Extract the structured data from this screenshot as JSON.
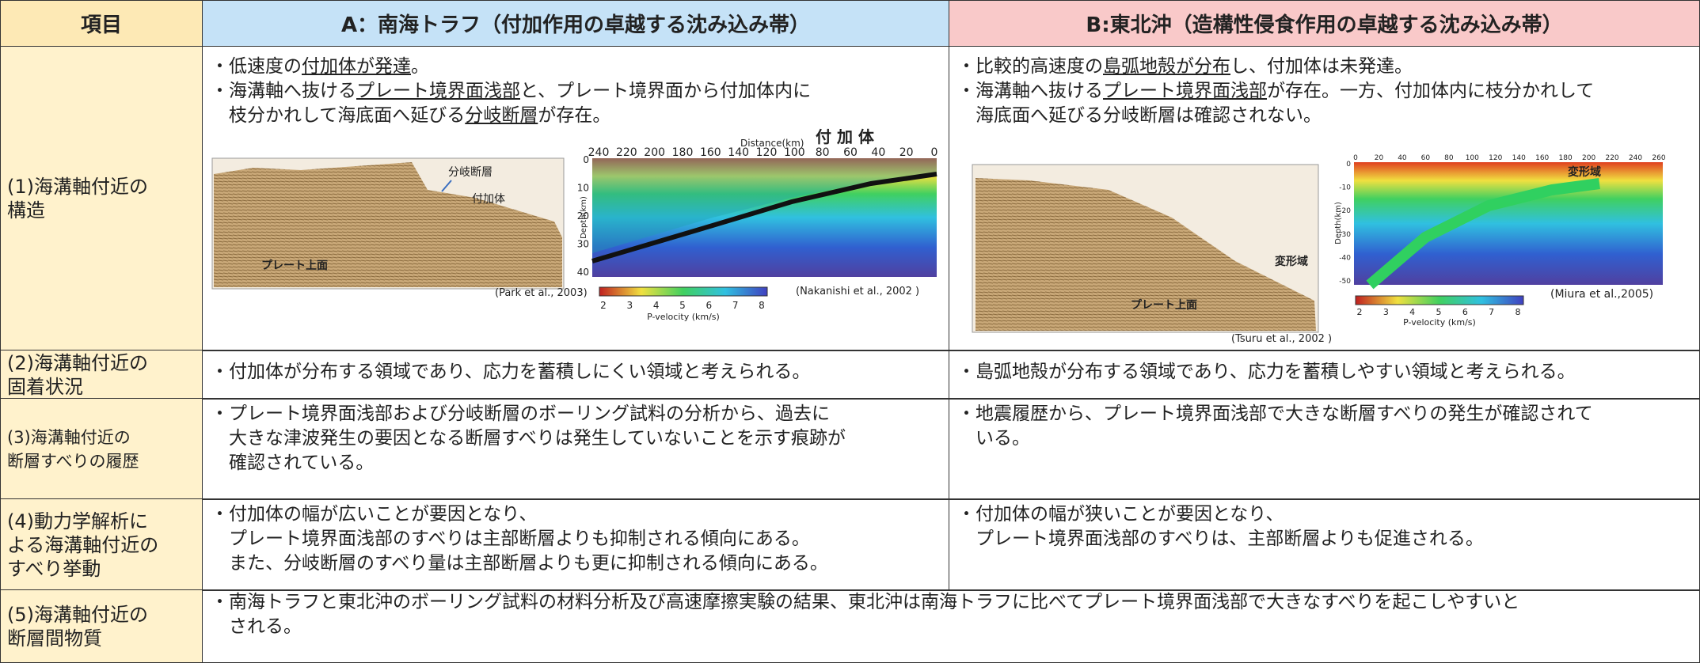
{
  "header": [
    "項目",
    "A：南海トラフ（付加作用の卓越する沈み込み帯）",
    "B:東北沖（造構性侵食作用の卓越する沈み込み帯）"
  ],
  "rows": [
    {
      "label": [
        "(1)海溝軸付近の",
        "構造"
      ],
      "cells": [
        [
          [
            {
              "text": "・低速度の",
              "underline": false
            },
            {
              "text": "付加体が発達",
              "underline": true
            },
            {
              "text": "。",
              "underline": false
            }
          ],
          [
            {
              "text": "・海溝軸へ抜ける",
              "underline": false
            },
            {
              "text": "プレート境界面浅部",
              "underline": true
            },
            {
              "text": "と、プレート境界面から付加体内に",
              "underline": false
            }
          ],
          [
            {
              "text": "　枝分かれして海底面へ延びる",
              "underline": false
            },
            {
              "text": "分岐断層",
              "underline": true
            },
            {
              "text": "が存在。",
              "underline": false
            }
          ]
        ],
        [
          [
            {
              "text": "・比較的高速度の",
              "underline": false
            },
            {
              "text": "島弧地殻が分布",
              "underline": true
            },
            {
              "text": "し、付加体は未発達。",
              "underline": false
            }
          ],
          [
            {
              "text": "・海溝軸へ抜ける",
              "underline": false
            },
            {
              "text": "プレート境界面浅部",
              "underline": true
            },
            {
              "text": "が存在。一方、付加体内に枝分かれして",
              "underline": false
            }
          ],
          [
            {
              "text": "　海底面へ延びる分岐断層は確認されない。",
              "underline": false
            }
          ]
        ]
      ]
    },
    {
      "label": [
        "(2)海溝軸付近の",
        "固着状況"
      ],
      "cells": [
        [
          "・付加体が分布する領域であり、応力を蓄積しにくい領域と考えられる。"
        ],
        [
          "・島弧地殻が分布する領域であり、応力を蓄積しやすい領域と考えられる。"
        ]
      ]
    },
    {
      "label": [
        "(3)海溝軸付近の",
        "断層すべりの履歴"
      ],
      "cells": [
        [
          "・プレート境界面浅部および分岐断層のボーリング試料の分析から、過去に",
          "　大きな津波発生の要因となる断層すべりは発生していないことを示す痕跡が",
          "　確認されている。"
        ],
        [
          "・地震履歴から、プレート境界面浅部で大きな断層すべりの発生が確認されて",
          "　いる。"
        ]
      ]
    },
    {
      "label": [
        "(4)動力学解析に",
        "よる海溝軸付近の",
        "すべり挙動"
      ],
      "cells": [
        [
          "・付加体の幅が広いことが要因となり、",
          "　プレート境界面浅部のすべりは主部断層よりも抑制される傾向にある。",
          "　また、分岐断層のすべり量は主部断層よりも更に抑制される傾向にある。"
        ],
        [
          "・付加体の幅が狭いことが要因となり、",
          "　プレート境界面浅部のすべりは、主部断層よりも促進される。"
        ]
      ]
    },
    {
      "label": [
        "(5)海溝軸付近の",
        "断層間物質"
      ],
      "cells": [
        [
          "・南海トラフと東北沖のボーリング試料の材料分析及び高速摩擦実験の結果、東北沖は南海トラフに比べてプレート境界面浅部で大きなすべりを起こしやすいと",
          "　される。"
        ]
      ]
    }
  ],
  "figures": {
    "a_seismic": {
      "labels": [
        "分岐断層",
        "付加体",
        "プレート上面"
      ],
      "source": "(Park et al., 2003)"
    },
    "a_velocity": {
      "title": "付 加 体",
      "xlabel": "Distance(km)",
      "xticks": [
        "240",
        "220",
        "200",
        "180",
        "160",
        "140",
        "120",
        "100",
        "80",
        "60",
        "40",
        "20",
        "0"
      ],
      "yticks": [
        "0",
        "10",
        "20",
        "30",
        "40"
      ],
      "ylabel": "Depth(km)",
      "colorbar": [
        "2",
        "3",
        "4",
        "5",
        "6",
        "7",
        "8"
      ],
      "colorbar_label": "P-velocity (km/s)",
      "source": "(Nakanishi et al., 2002 )"
    },
    "b_seismic": {
      "labels": [
        "変形域",
        "プレート上面"
      ],
      "source": "(Tsuru et al., 2002 )"
    },
    "b_velocity": {
      "title": "変形域",
      "xticks": [
        "0",
        "20",
        "40",
        "60",
        "80",
        "100",
        "120",
        "140",
        "160",
        "180",
        "200",
        "220",
        "240",
        "260"
      ],
      "yticks": [
        "0",
        "-10",
        "-20",
        "-30",
        "-40",
        "-50"
      ],
      "ylabel": "Depth(km)",
      "colorbar": [
        "2",
        "3",
        "4",
        "5",
        "6",
        "7",
        "8"
      ],
      "colorbar_label": "P-velocity (km/s)",
      "source": "(Miura et al.,2005)"
    }
  }
}
